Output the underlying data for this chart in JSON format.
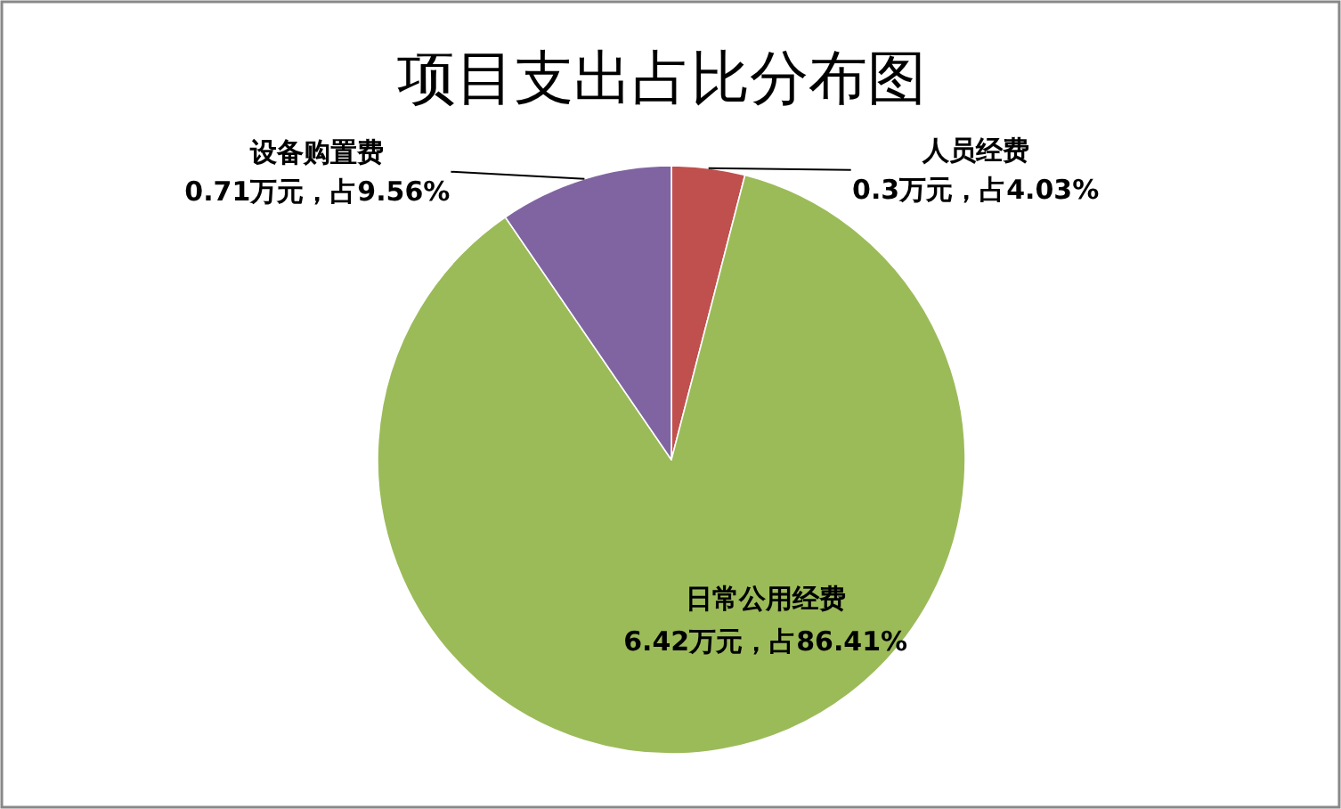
{
  "chart_data": {
    "type": "pie",
    "title": "项目支出占比分布图",
    "categories": [
      "人员经费",
      "日常公用经费",
      "设备购置费"
    ],
    "values": [
      4.03,
      86.41,
      9.56
    ],
    "value_labels": [
      "0.3万元，占4.03%",
      "6.42万元，占86.41%",
      "0.71万元，占9.56%"
    ],
    "colors": [
      "#c0504d",
      "#9bbb59",
      "#8064a2"
    ],
    "legend": false
  }
}
